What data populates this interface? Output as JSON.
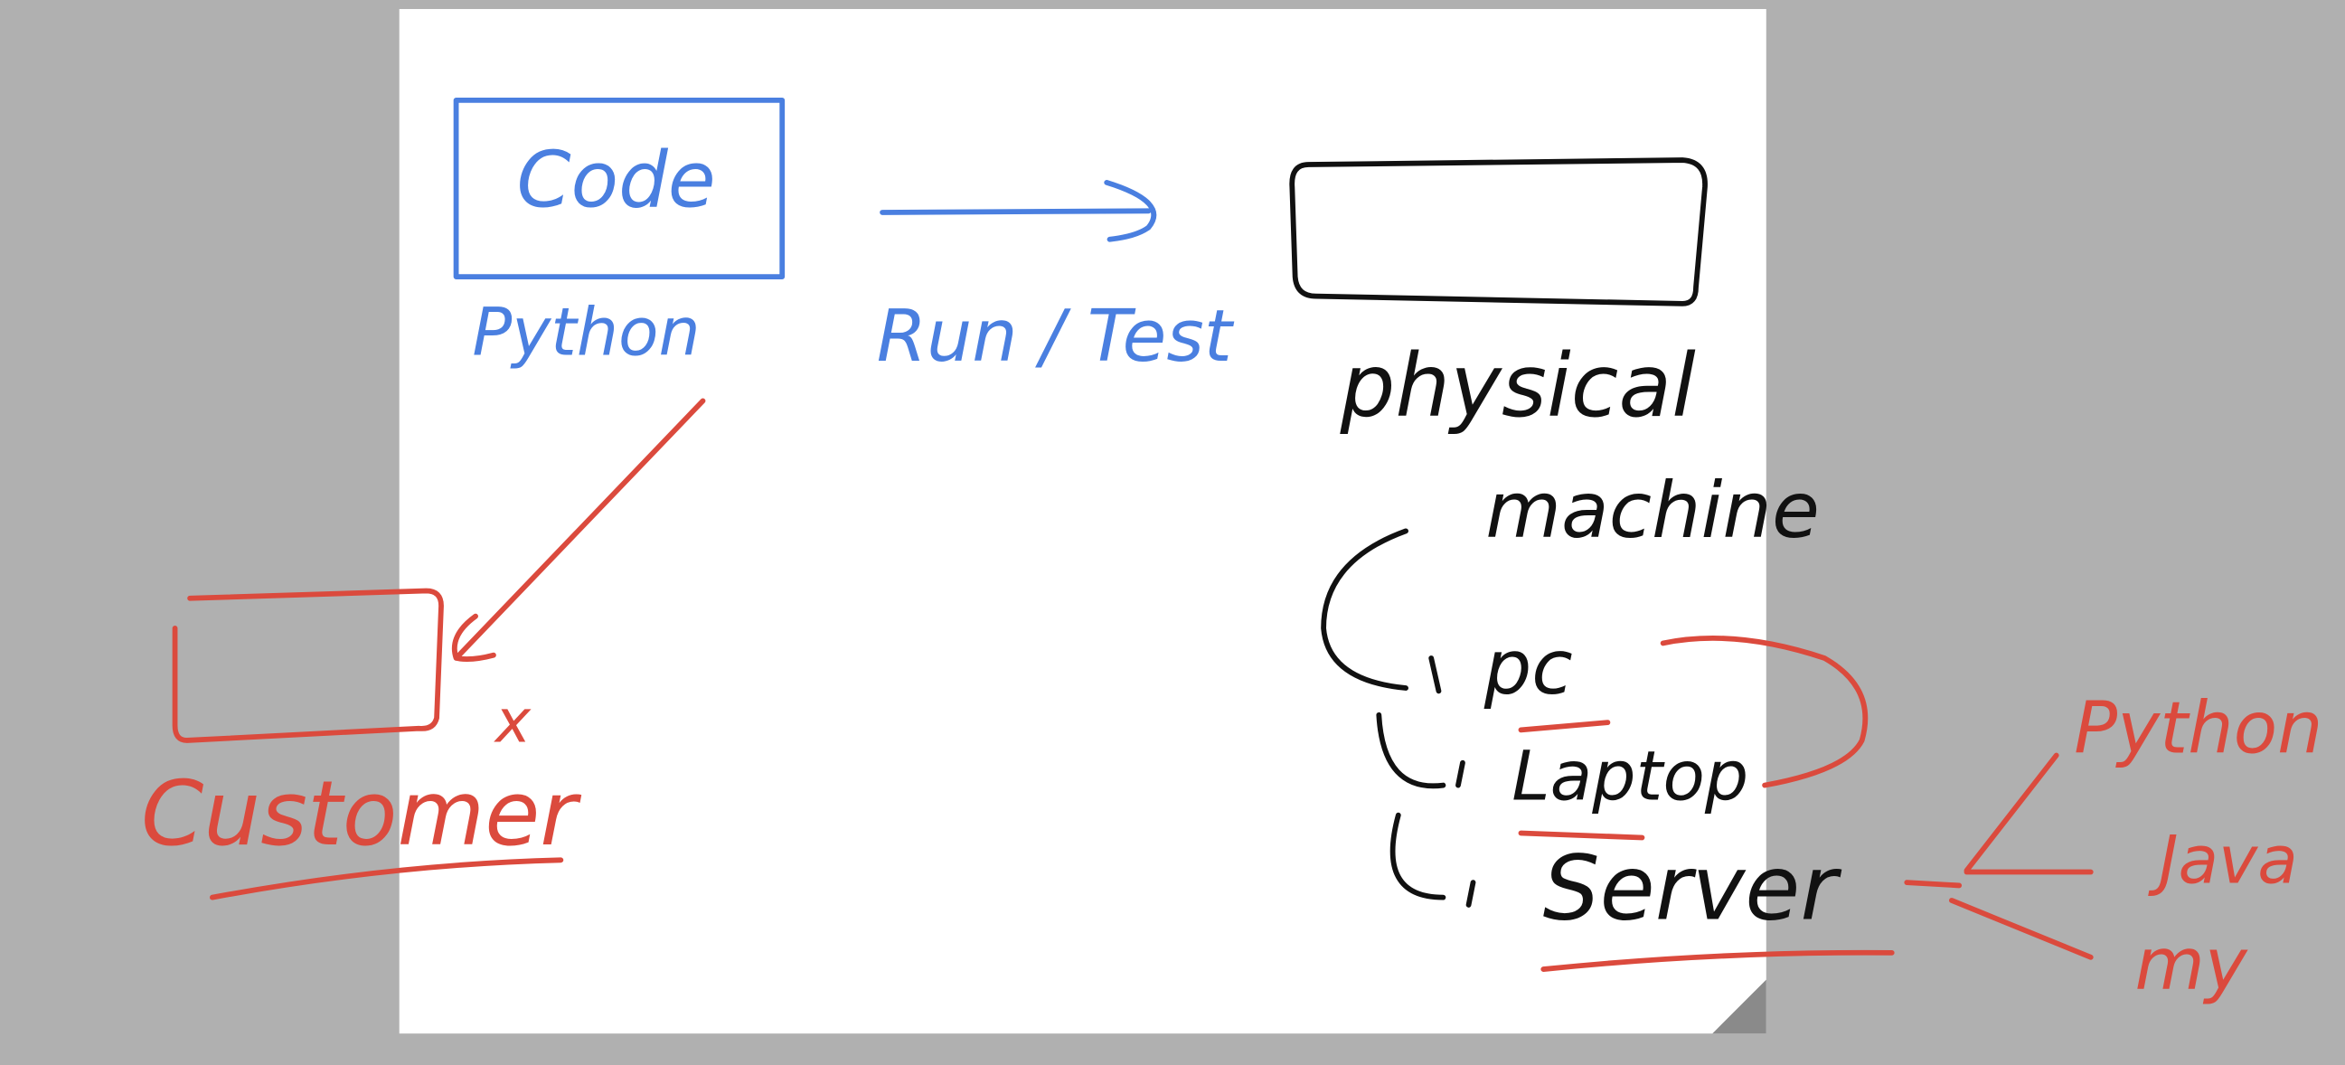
{
  "code_box": {
    "label": "Code",
    "language": "Python"
  },
  "arrow_label": "Run / Test",
  "machine": {
    "label_line1": "physical",
    "label_line2": "machine",
    "types": [
      "pc",
      "Laptop",
      "Server"
    ]
  },
  "customer": {
    "label": "Customer",
    "mark": "x"
  },
  "server_languages": [
    "Python",
    "Java",
    "my"
  ]
}
